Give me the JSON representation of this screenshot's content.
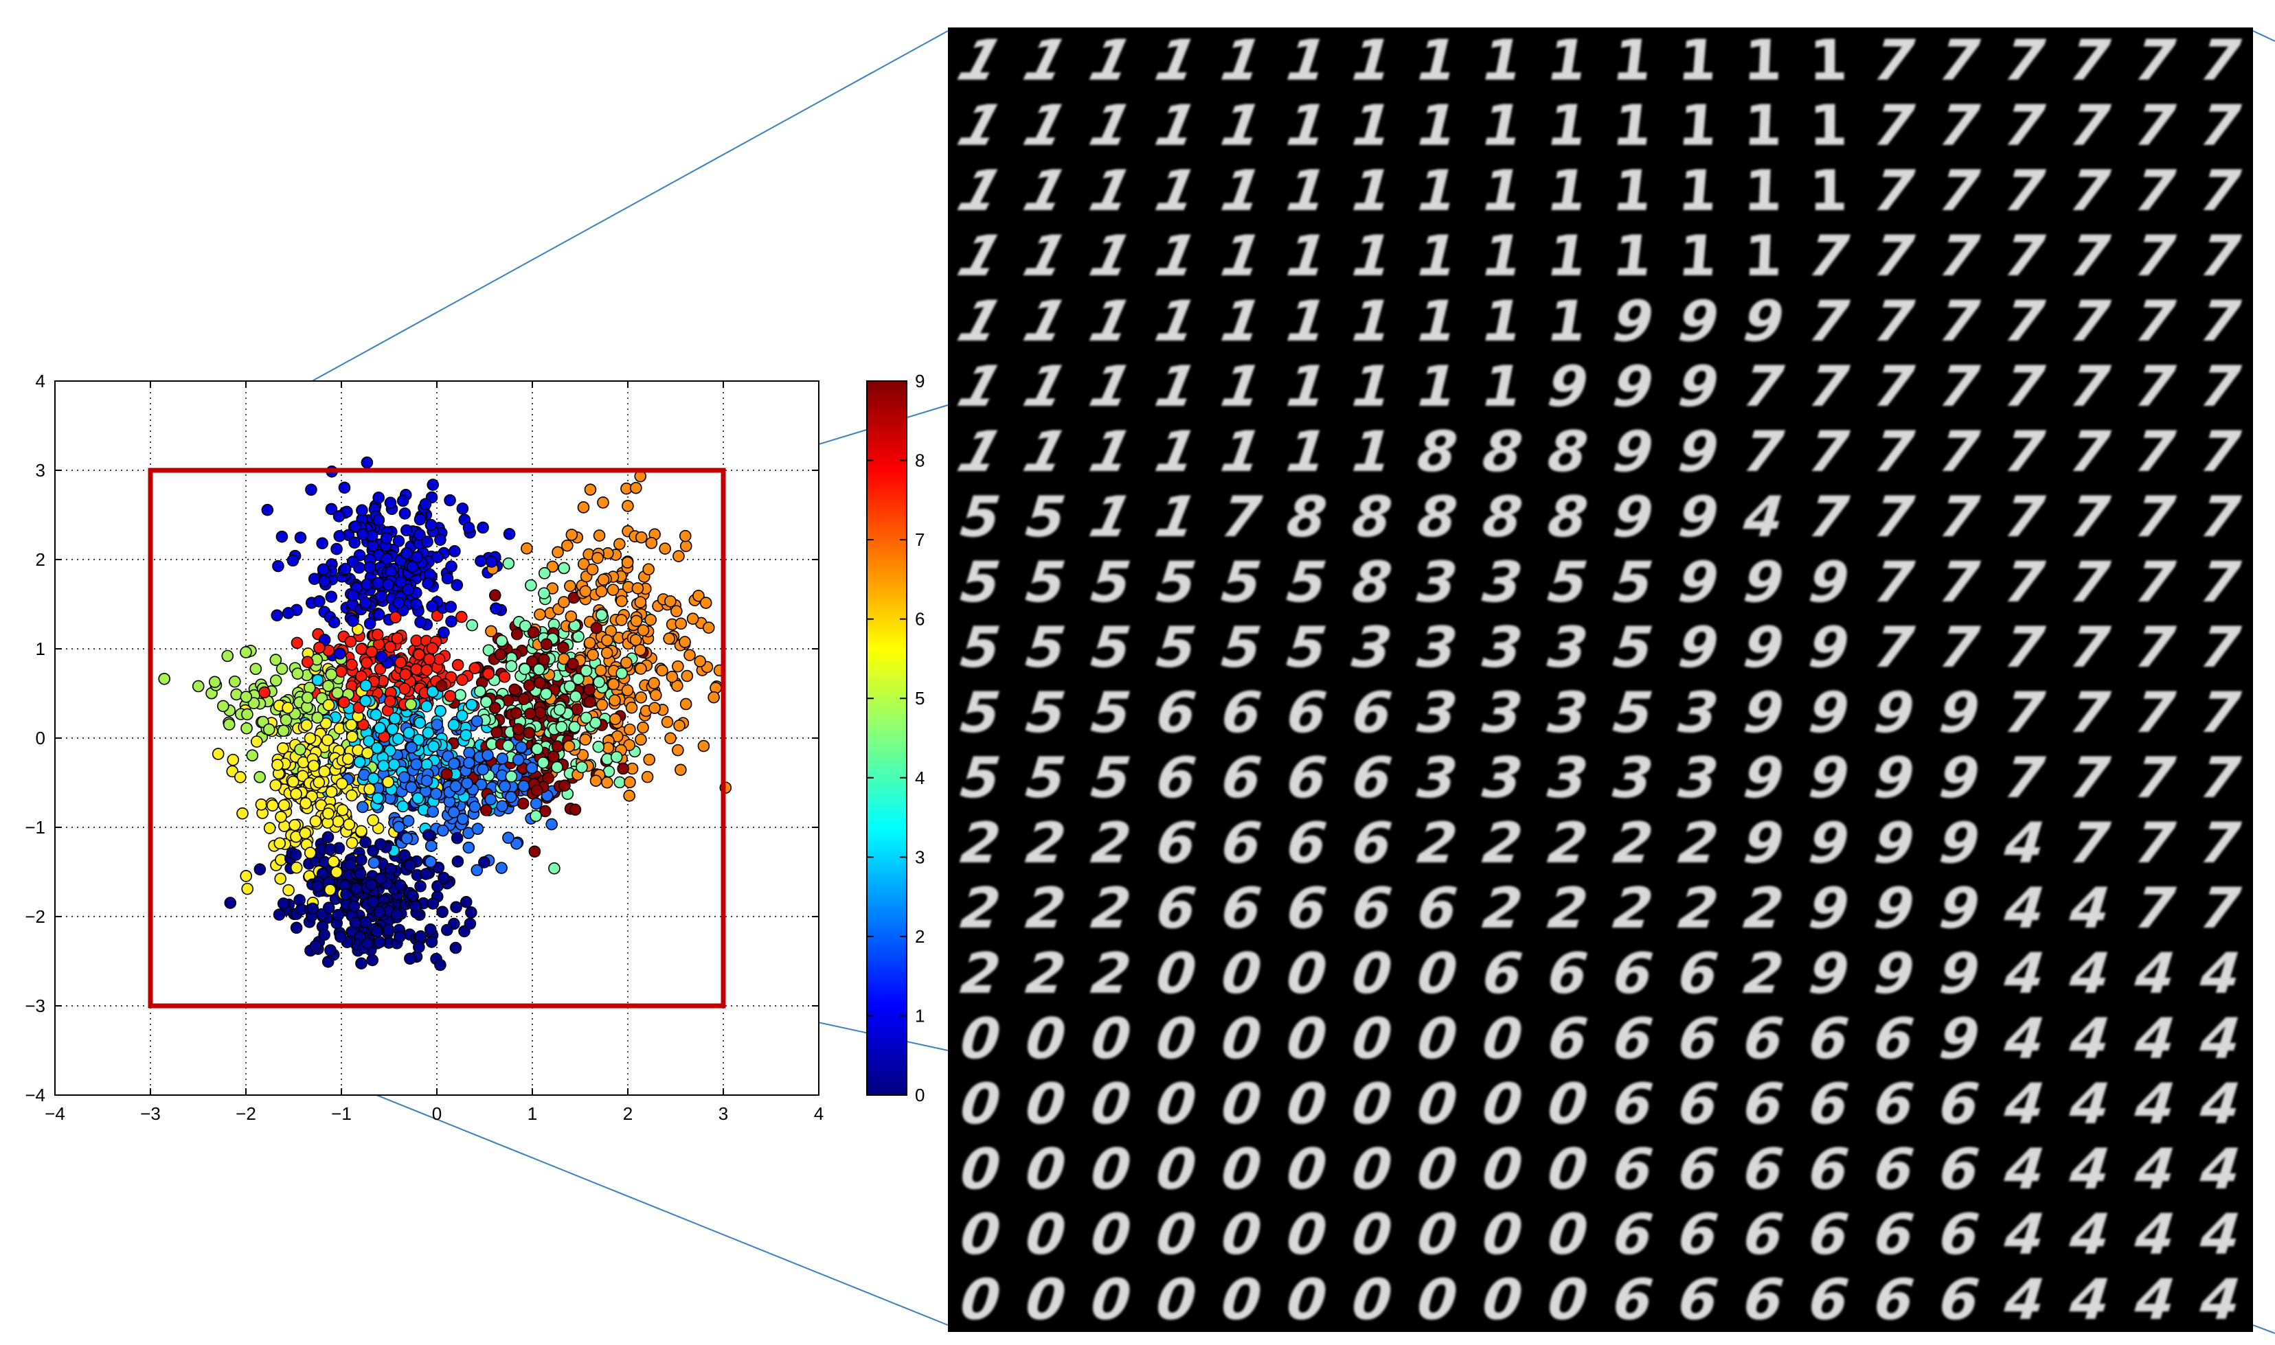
{
  "chart_data": {
    "type": "scatter",
    "title": "",
    "xlabel": "",
    "ylabel": "",
    "xlim": [
      -4,
      4
    ],
    "ylim": [
      -4,
      4
    ],
    "x_ticks": [
      "−4",
      "−3",
      "−2",
      "−1",
      "0",
      "1",
      "2",
      "3",
      "4"
    ],
    "y_ticks": [
      "−4",
      "−3",
      "−2",
      "−1",
      "0",
      "1",
      "2",
      "3",
      "4"
    ],
    "grid": true,
    "colorbar": {
      "range": [
        0,
        9
      ],
      "ticks": [
        "0",
        "1",
        "2",
        "3",
        "4",
        "5",
        "6",
        "7",
        "8",
        "9"
      ],
      "colormap": [
        "#00007f",
        "#0000ff",
        "#007fff",
        "#00ffff",
        "#7fff7f",
        "#ffff00",
        "#ff7f00",
        "#ff0000",
        "#7f0000"
      ]
    },
    "highlight_box": {
      "x": [
        -3,
        3
      ],
      "y": [
        -3,
        3
      ],
      "color": "#c00000"
    },
    "class_clusters": [
      {
        "label": 0,
        "color": "#00008f",
        "center": [
          -0.7,
          -1.8
        ],
        "spread": [
          0.45,
          0.35
        ],
        "count": 260
      },
      {
        "label": 1,
        "color": "#0000d8",
        "center": [
          -0.55,
          1.9
        ],
        "spread": [
          0.45,
          0.4
        ],
        "count": 260
      },
      {
        "label": 2,
        "color": "#1f6fff",
        "center": [
          0.15,
          -0.55
        ],
        "spread": [
          0.5,
          0.35
        ],
        "count": 220
      },
      {
        "label": 3,
        "color": "#00d8ff",
        "center": [
          -0.3,
          -0.1
        ],
        "spread": [
          0.45,
          0.35
        ],
        "count": 160
      },
      {
        "label": 4,
        "color": "#7fffb4",
        "center": [
          1.2,
          0.4
        ],
        "spread": [
          0.4,
          0.55
        ],
        "count": 180
      },
      {
        "label": 5,
        "color": "#a8f050",
        "center": [
          -1.5,
          0.4
        ],
        "spread": [
          0.45,
          0.3
        ],
        "count": 110
      },
      {
        "label": 6,
        "color": "#ffee22",
        "center": [
          -1.25,
          -0.6
        ],
        "spread": [
          0.35,
          0.55
        ],
        "count": 220
      },
      {
        "label": 7,
        "color": "#ff8c10",
        "center": [
          1.95,
          1.0
        ],
        "spread": [
          0.45,
          0.75
        ],
        "count": 260
      },
      {
        "label": 8,
        "color": "#ff1a0a",
        "center": [
          -0.4,
          0.75
        ],
        "spread": [
          0.45,
          0.25
        ],
        "count": 150
      },
      {
        "label": 9,
        "color": "#8b0000",
        "center": [
          1.0,
          0.3
        ],
        "spread": [
          0.35,
          0.55
        ],
        "count": 170
      }
    ],
    "manifold_grid": {
      "rows": 20,
      "cols": 20,
      "x_range": [
        -3,
        3
      ],
      "y_range": [
        3,
        -3
      ],
      "digits": [
        "11111111111111777777",
        "11111111111111777777",
        "11111111111111777777",
        "11111111111117777777",
        "11111111119997777777",
        "11111111199977777777",
        "11111118889977777777",
        "55117888889947777777",
        "55555583355999777777",
        "55555533335999777777",
        "55566663335399997777",
        "55566663333399997777",
        "22266662222299994777",
        "22266666222229994477",
        "22200000666629994444",
        "00000000066666694444",
        "00000000006666664444",
        "00000000006666664444",
        "00000000006666664444",
        "00000000006666664444"
      ]
    }
  }
}
